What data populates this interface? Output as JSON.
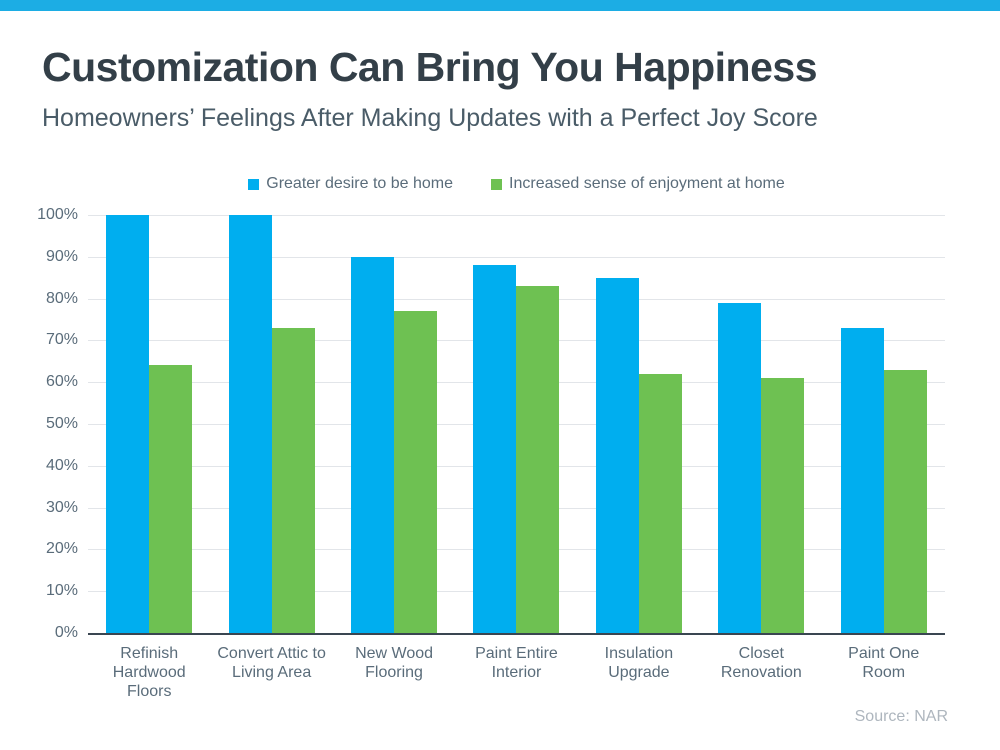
{
  "page": {
    "top_bar_color": "#1CADE4",
    "title": "Customization Can Bring You Happiness",
    "subtitle": "Homeowners’ Feelings After Making Updates with a Perfect Joy Score",
    "source": "Source: NAR"
  },
  "legend": [
    {
      "label": "Greater desire to be home",
      "color": "#00AEEF"
    },
    {
      "label": "Increased sense of enjoyment at home",
      "color": "#6EC152"
    }
  ],
  "chart_data": {
    "type": "bar",
    "title": "Customization Can Bring You Happiness",
    "subtitle": "Homeowners’ Feelings After Making Updates with a Perfect Joy Score",
    "categories": [
      "Refinish Hardwood Floors",
      "Convert Attic to Living Area",
      "New Wood Flooring",
      "Paint Entire Interior",
      "Insulation Upgrade",
      "Closet Renovation",
      "Paint One Room"
    ],
    "category_label_lines": [
      [
        "Refinish",
        "Hardwood",
        "Floors"
      ],
      [
        "Convert Attic to",
        "Living Area"
      ],
      [
        "New Wood",
        "Flooring"
      ],
      [
        "Paint Entire",
        "Interior"
      ],
      [
        "Insulation",
        "Upgrade"
      ],
      [
        "Closet",
        "Renovation"
      ],
      [
        "Paint One",
        "Room"
      ]
    ],
    "series": [
      {
        "name": "Greater desire to be home",
        "color": "#00AEEF",
        "values": [
          100,
          100,
          90,
          88,
          85,
          79,
          73
        ]
      },
      {
        "name": "Increased sense of enjoyment at home",
        "color": "#6EC152",
        "values": [
          64,
          73,
          77,
          83,
          62,
          61,
          63
        ]
      }
    ],
    "xlabel": "",
    "ylabel": "",
    "ylim": [
      0,
      100
    ],
    "ytick_labels": [
      "0%",
      "10%",
      "20%",
      "30%",
      "40%",
      "50%",
      "60%",
      "70%",
      "80%",
      "90%",
      "100%"
    ],
    "grid": true,
    "legend_position": "top",
    "source": "Source: NAR"
  }
}
